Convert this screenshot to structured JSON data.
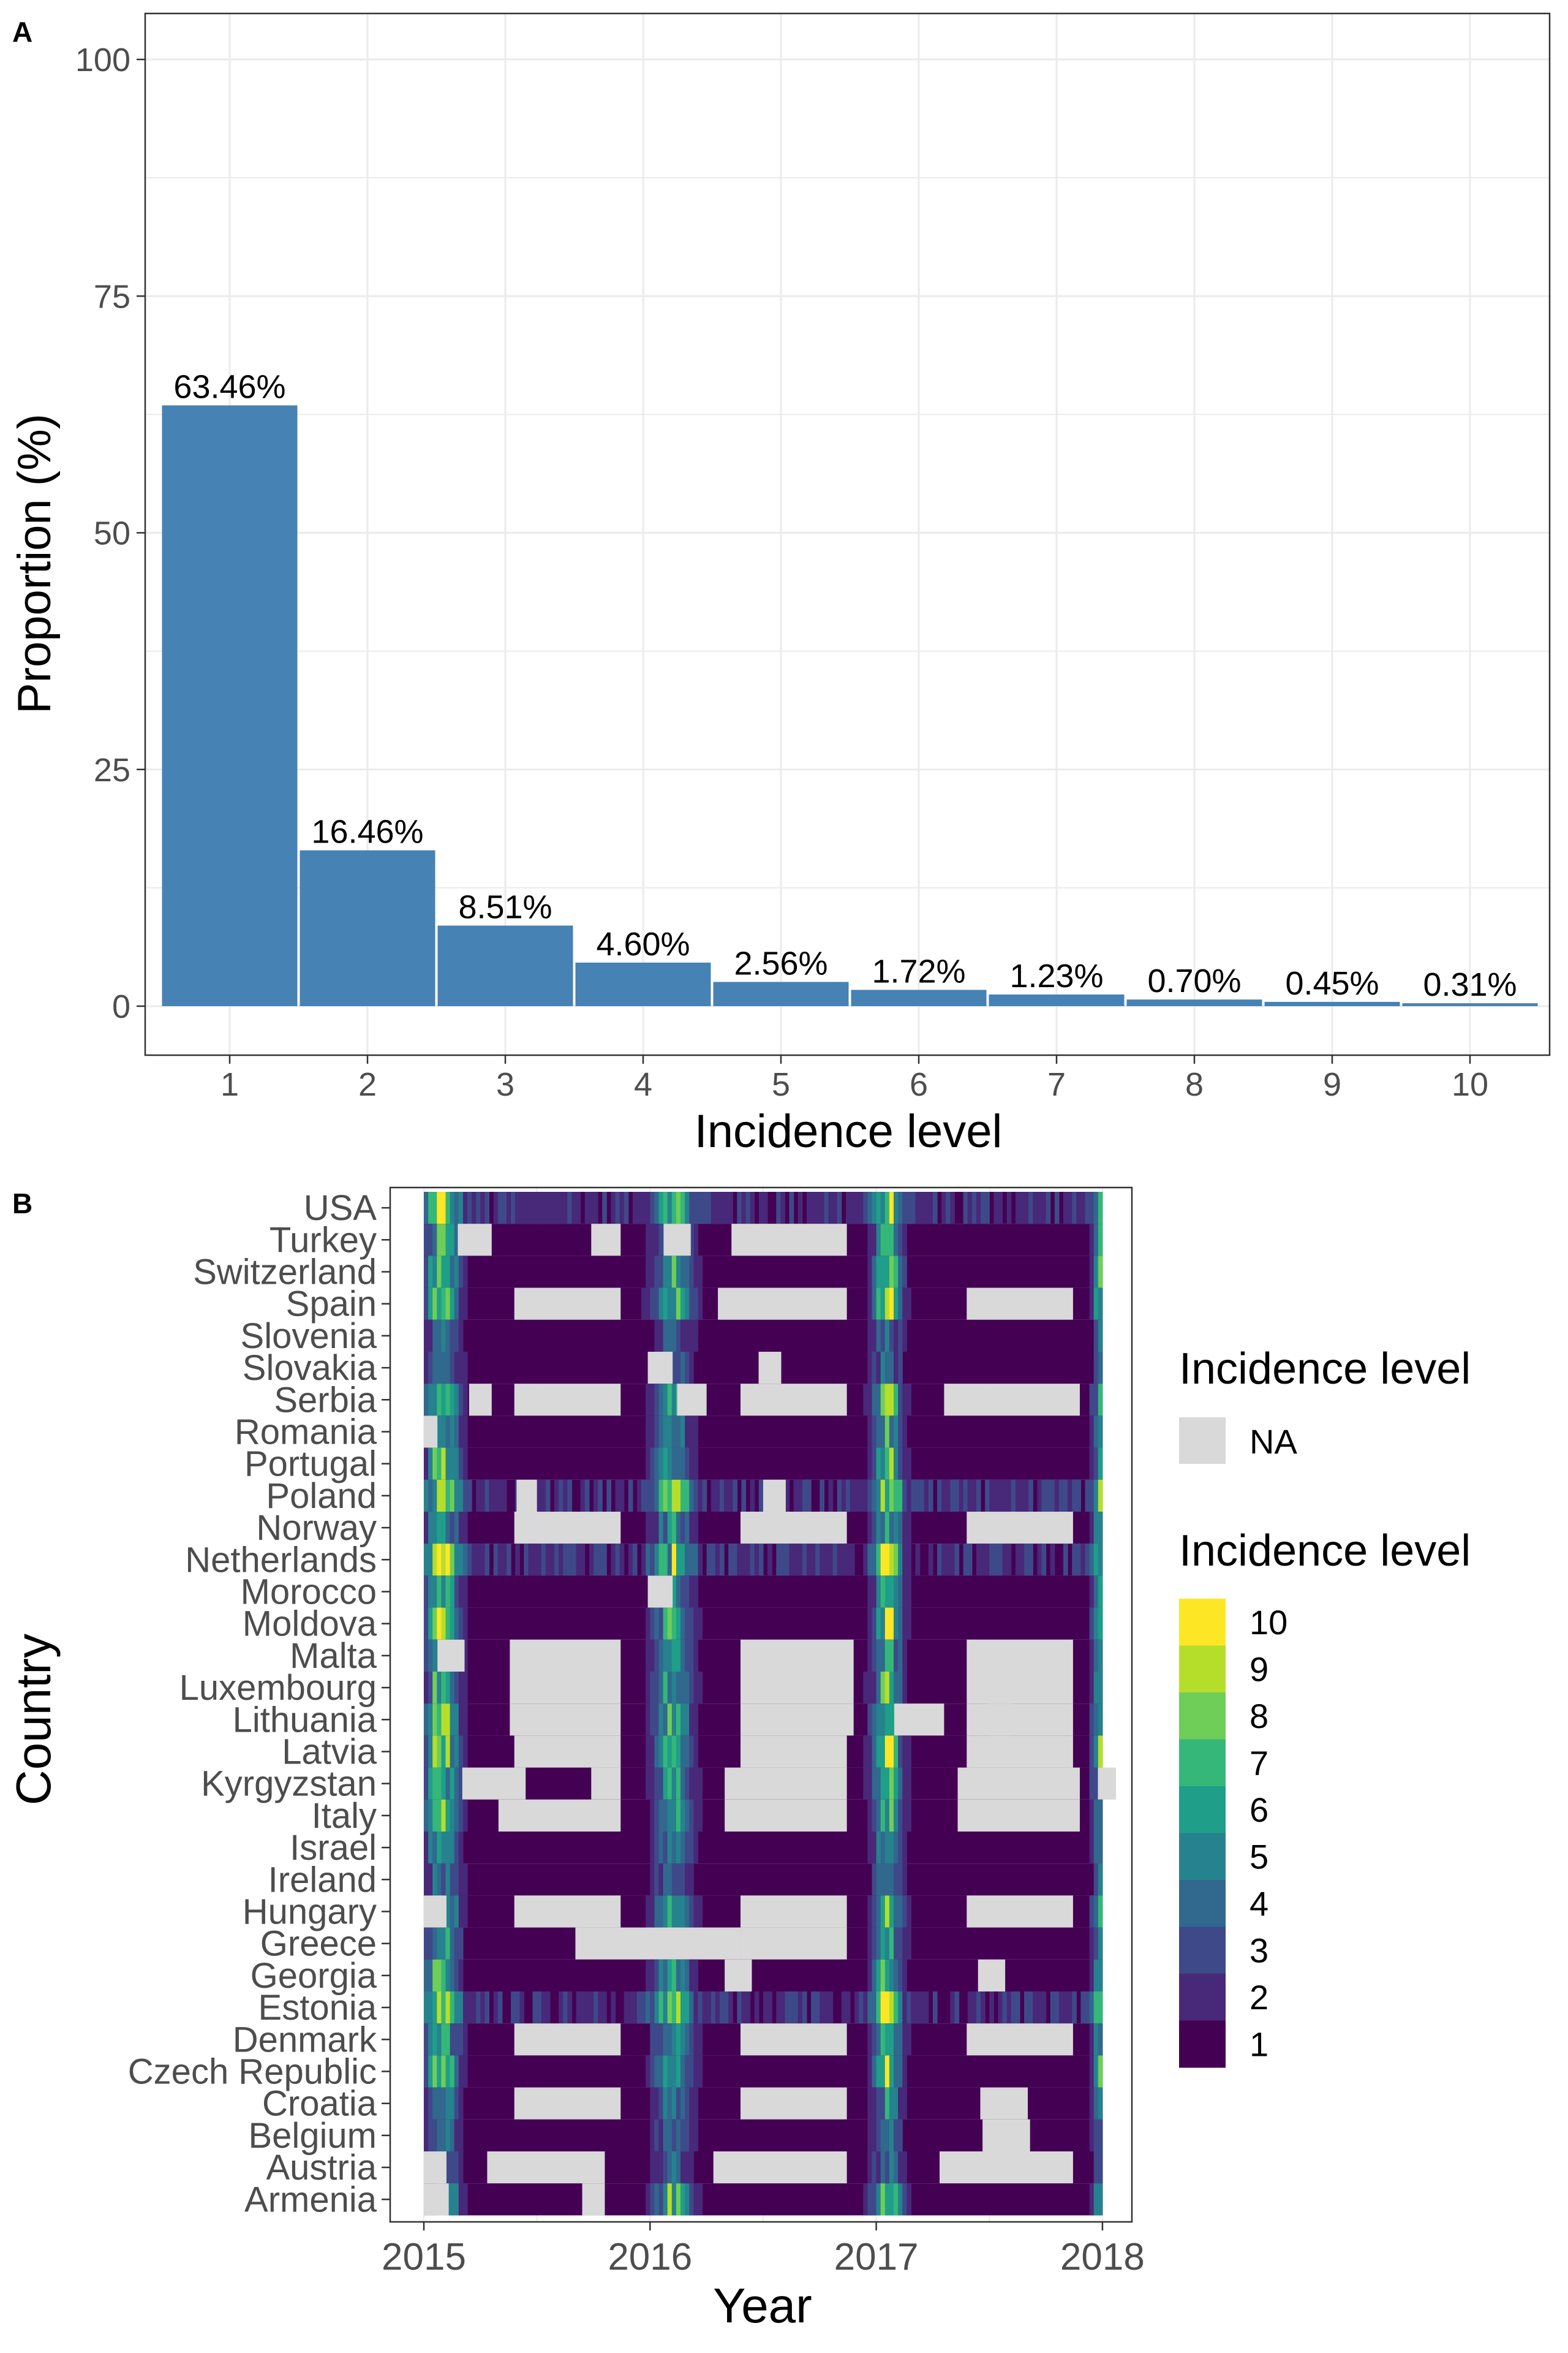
{
  "colors": {
    "bar": "#4682b4",
    "na": "#d9d9d9",
    "grid": "#ebebeb",
    "frame": "#333333",
    "viridis": [
      "#440154",
      "#482878",
      "#3e4989",
      "#31688e",
      "#26828e",
      "#1f9e89",
      "#35b779",
      "#6ece58",
      "#b5de2b",
      "#fde725"
    ]
  },
  "chart_data": [
    {
      "panel": "A",
      "type": "bar",
      "xlabel": "Incidence level",
      "ylabel": "Proportion (%)",
      "ylim": [
        0,
        105
      ],
      "yticks": [
        0,
        25,
        50,
        75,
        100
      ],
      "grid": true,
      "categories": [
        "1",
        "2",
        "3",
        "4",
        "5",
        "6",
        "7",
        "8",
        "9",
        "10"
      ],
      "values": [
        63.46,
        16.46,
        8.51,
        4.6,
        2.56,
        1.72,
        1.23,
        0.7,
        0.45,
        0.31
      ],
      "value_labels": [
        "63.46%",
        "16.46%",
        "8.51%",
        "4.60%",
        "2.56%",
        "1.72%",
        "1.23%",
        "0.70%",
        "0.45%",
        "0.31%"
      ]
    },
    {
      "panel": "B",
      "type": "heatmap",
      "xlabel": "Year",
      "ylabel": "Country",
      "xticks": [
        "2015",
        "2016",
        "2017",
        "2018"
      ],
      "xlim": [
        2014.98,
        2018.15
      ],
      "grid": true,
      "legend_position": "right",
      "legend_na": {
        "title": "Incidence level",
        "label": "NA"
      },
      "legend_scale": {
        "title": "Incidence level",
        "levels": [
          "10",
          "9",
          "8",
          "7",
          "6",
          "5",
          "4",
          "3",
          "2",
          "1"
        ]
      },
      "countries": [
        "USA",
        "Turkey",
        "Switzerland",
        "Spain",
        "Slovenia",
        "Slovakia",
        "Serbia",
        "Romania",
        "Portugal",
        "Poland",
        "Norway",
        "Netherlands",
        "Morocco",
        "Moldova",
        "Malta",
        "Luxembourg",
        "Lithuania",
        "Latvia",
        "Kyrgyzstan",
        "Italy",
        "Israel",
        "Ireland",
        "Hungary",
        "Greece",
        "Georgia",
        "Estonia",
        "Denmark",
        "Czech Republic",
        "Croatia",
        "Belgium",
        "Austria",
        "Armenia"
      ],
      "baseline_level": 1,
      "na_segments": [
        [
          "Turkey",
          2015.15,
          2015.3
        ],
        [
          "Turkey",
          2015.74,
          2015.87
        ],
        [
          "Turkey",
          2016.06,
          2016.18
        ],
        [
          "Turkey",
          2016.36,
          2016.87
        ],
        [
          "Spain",
          2015.4,
          2015.87
        ],
        [
          "Spain",
          2016.3,
          2016.87
        ],
        [
          "Spain",
          2017.4,
          2017.87
        ],
        [
          "Slovakia",
          2015.99,
          2016.1
        ],
        [
          "Slovakia",
          2016.48,
          2016.58
        ],
        [
          "Serbia",
          2015.2,
          2015.3
        ],
        [
          "Serbia",
          2015.4,
          2015.87
        ],
        [
          "Serbia",
          2016.12,
          2016.25
        ],
        [
          "Serbia",
          2016.4,
          2016.87
        ],
        [
          "Serbia",
          2017.3,
          2017.9
        ],
        [
          "Romania",
          2015.0,
          2015.06
        ],
        [
          "Poland",
          2015.41,
          2015.5
        ],
        [
          "Poland",
          2016.5,
          2016.6
        ],
        [
          "Norway",
          2015.4,
          2015.87
        ],
        [
          "Norway",
          2016.4,
          2016.87
        ],
        [
          "Norway",
          2017.4,
          2017.87
        ],
        [
          "Morocco",
          2015.99,
          2016.1
        ],
        [
          "Malta",
          2015.06,
          2015.18
        ],
        [
          "Malta",
          2015.38,
          2015.87
        ],
        [
          "Malta",
          2016.4,
          2016.9
        ],
        [
          "Malta",
          2017.4,
          2017.87
        ],
        [
          "Luxembourg",
          2015.38,
          2015.87
        ],
        [
          "Luxembourg",
          2016.4,
          2016.9
        ],
        [
          "Luxembourg",
          2017.4,
          2017.87
        ],
        [
          "Lithuania",
          2015.38,
          2015.87
        ],
        [
          "Lithuania",
          2016.4,
          2016.9
        ],
        [
          "Lithuania",
          2017.08,
          2017.3
        ],
        [
          "Lithuania",
          2017.5,
          2017.6
        ],
        [
          "Lithuania",
          2017.4,
          2017.87
        ],
        [
          "Latvia",
          2015.4,
          2015.87
        ],
        [
          "Latvia",
          2016.4,
          2016.87
        ],
        [
          "Latvia",
          2017.4,
          2017.87
        ],
        [
          "Kyrgyzstan",
          2015.17,
          2015.45
        ],
        [
          "Kyrgyzstan",
          2015.74,
          2015.87
        ],
        [
          "Kyrgyzstan",
          2016.33,
          2016.87
        ],
        [
          "Kyrgyzstan",
          2017.36,
          2017.9
        ],
        [
          "Kyrgyzstan",
          2017.98,
          2018.06
        ],
        [
          "Italy",
          2015.33,
          2015.87
        ],
        [
          "Italy",
          2016.33,
          2016.87
        ],
        [
          "Italy",
          2017.36,
          2017.9
        ],
        [
          "Hungary",
          2015.0,
          2015.1
        ],
        [
          "Hungary",
          2015.4,
          2015.87
        ],
        [
          "Hungary",
          2016.4,
          2016.87
        ],
        [
          "Hungary",
          2017.4,
          2017.87
        ],
        [
          "Greece",
          2015.67,
          2016.4
        ],
        [
          "Greece",
          2016.4,
          2016.87
        ],
        [
          "Georgia",
          2016.33,
          2016.45
        ],
        [
          "Georgia",
          2017.45,
          2017.57
        ],
        [
          "Denmark",
          2015.4,
          2015.87
        ],
        [
          "Denmark",
          2016.4,
          2016.87
        ],
        [
          "Denmark",
          2017.4,
          2017.87
        ],
        [
          "Croatia",
          2015.4,
          2015.87
        ],
        [
          "Croatia",
          2016.4,
          2016.87
        ],
        [
          "Croatia",
          2017.46,
          2017.67
        ],
        [
          "Belgium",
          2017.47,
          2017.68
        ],
        [
          "Austria",
          2015.0,
          2015.1
        ],
        [
          "Austria",
          2015.28,
          2015.8
        ],
        [
          "Austria",
          2016.28,
          2016.87
        ],
        [
          "Austria",
          2017.28,
          2017.87
        ],
        [
          "Armenia",
          2015.0,
          2015.11
        ],
        [
          "Armenia",
          2015.7,
          2015.8
        ]
      ]
    }
  ]
}
